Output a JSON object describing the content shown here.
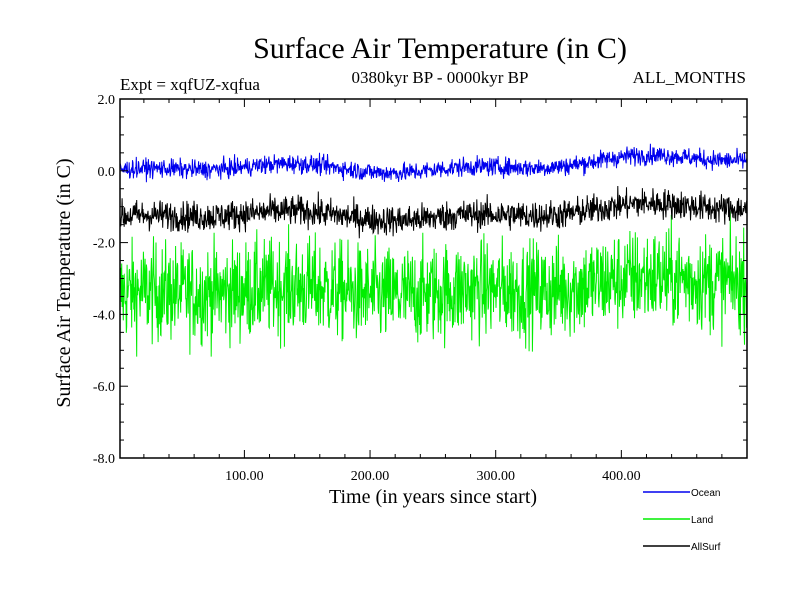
{
  "chart_data": {
    "type": "line",
    "title": "Surface Air Temperature (in C)",
    "subtitle_left": "Expt = xqfUZ-xqfua",
    "subtitle_center": "0380kyr BP - 0000kyr BP",
    "subtitle_right": "ALL_MONTHS",
    "xlabel": "Time (in years since start)",
    "ylabel": "Surface Air Temperature (in C)",
    "xlim": [
      1,
      500
    ],
    "ylim": [
      -8,
      2
    ],
    "xticks": [
      100,
      200,
      300,
      400
    ],
    "xtick_labels": [
      "100.00",
      "200.00",
      "300.00",
      "400.00"
    ],
    "yticks": [
      2,
      0,
      -2,
      -4,
      -6,
      -8
    ],
    "ytick_labels": [
      "2.0",
      "0.0",
      "-2.0",
      "-4.0",
      "-6.0",
      "-8.0"
    ],
    "series": [
      {
        "name": "Land",
        "color": "#00ee00",
        "mean_start": -3.5,
        "mean_end": -3.1,
        "noise": 1.15
      },
      {
        "name": "AllSurf",
        "color": "#000000",
        "mean_start": -1.35,
        "mean_end": -1.05,
        "noise": 0.35
      },
      {
        "name": "Ocean",
        "color": "#0000ee",
        "mean_start": -0.05,
        "mean_end": 0.3,
        "noise": 0.22
      }
    ],
    "legend": [
      {
        "name": "Ocean",
        "color": "#0000ee"
      },
      {
        "name": "Land",
        "color": "#00ee00"
      },
      {
        "name": "AllSurf",
        "color": "#000000"
      }
    ],
    "legend_position": "bottom-right"
  }
}
